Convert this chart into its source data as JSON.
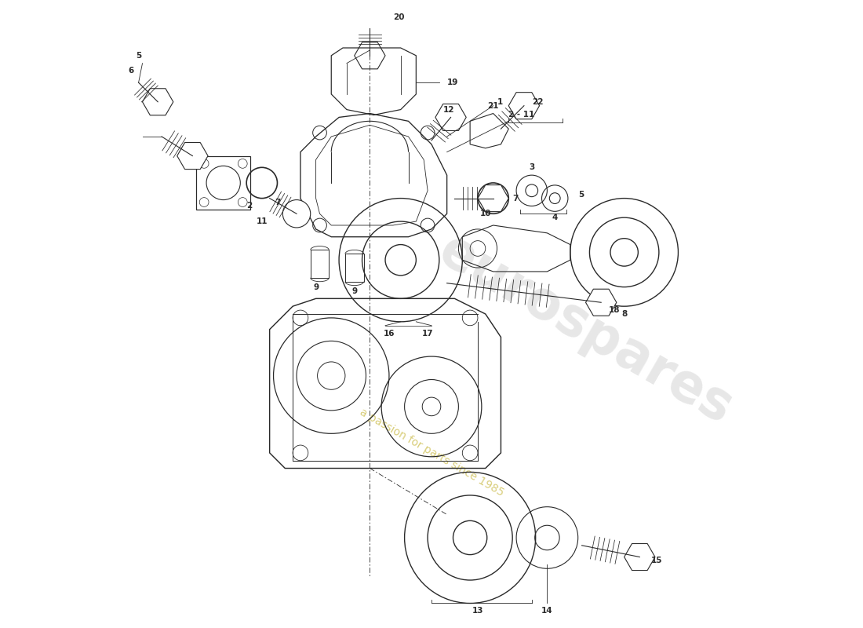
{
  "background_color": "#ffffff",
  "line_color": "#2a2a2a",
  "watermark1": "eurospares",
  "watermark2": "a passion for parts since 1985",
  "wm1_color": "#d0d0d0",
  "wm2_color": "#c8b840",
  "fig_width": 11.0,
  "fig_height": 8.0,
  "dpi": 100
}
